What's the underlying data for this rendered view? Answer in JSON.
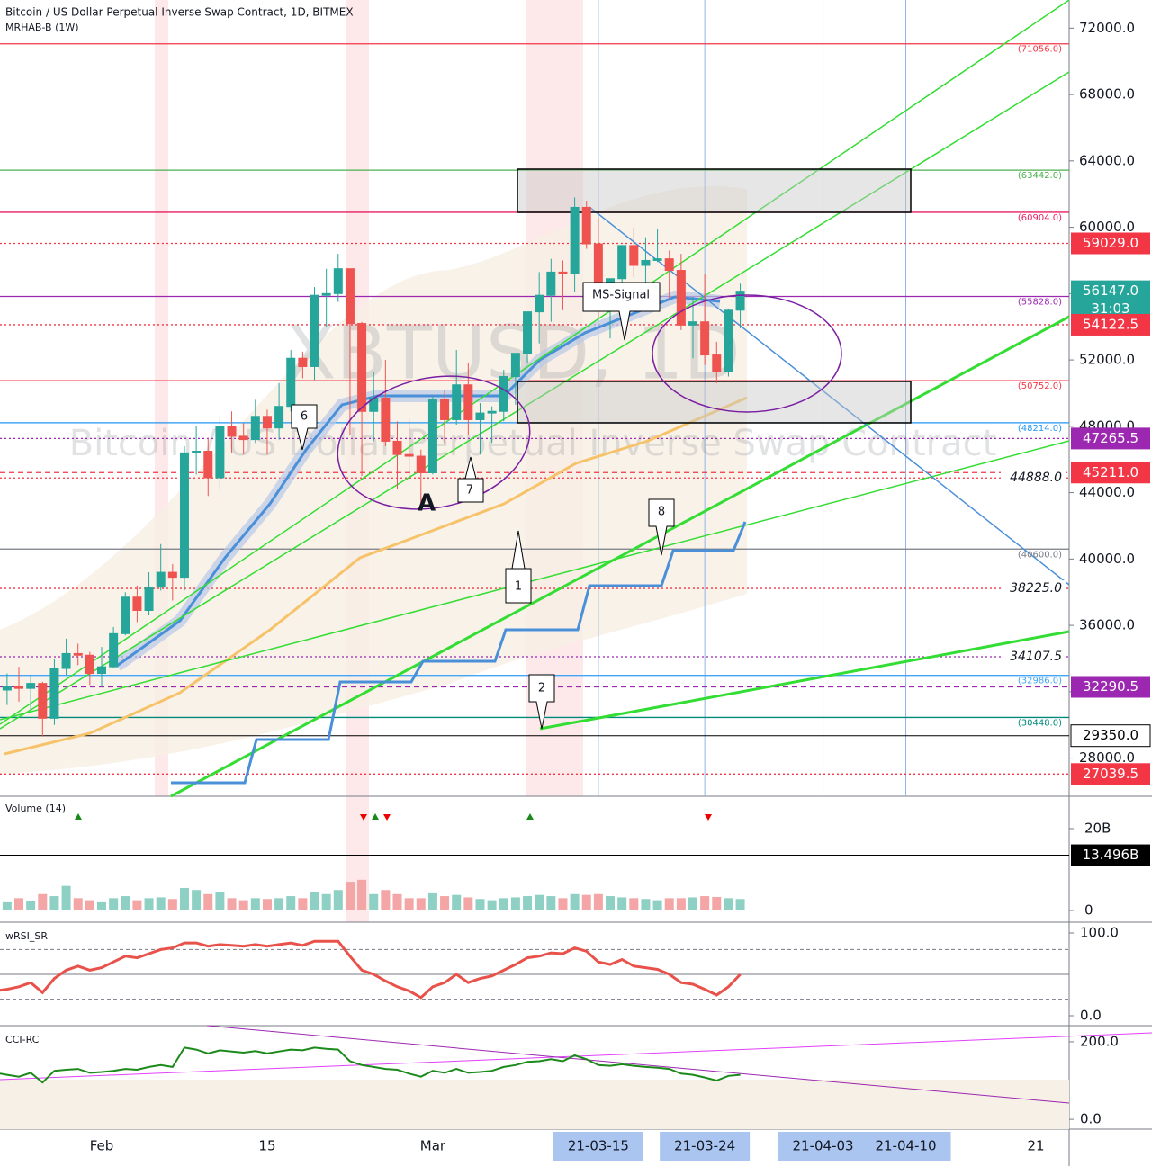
{
  "chart_data": {
    "type": "candlestick",
    "title": "Bitcoin / US Dollar Perpetual Inverse Swap Contract, 1D, BITMEX",
    "subtitle": "MRHAB-B (1W)",
    "watermark": "XBTUSD, 1D",
    "watermark_subtitle": "Bitcoin / US Dollar Perpetual Inverse Swap Contract",
    "up_color": "#26a69a",
    "down_color": "#ef5350",
    "x": [
      "21-01-23",
      "21-01-24",
      "21-01-25",
      "21-01-26",
      "21-01-27",
      "21-01-28",
      "21-01-29",
      "21-01-30",
      "21-01-31",
      "21-02-01",
      "21-02-02",
      "21-02-03",
      "21-02-04",
      "21-02-05",
      "21-02-06",
      "21-02-07",
      "21-02-08",
      "21-02-09",
      "21-02-10",
      "21-02-11",
      "21-02-12",
      "21-02-13",
      "21-02-14",
      "21-02-15",
      "21-02-16",
      "21-02-17",
      "21-02-18",
      "21-02-19",
      "21-02-20",
      "21-02-21",
      "21-02-22",
      "21-02-23",
      "21-02-24",
      "21-02-25",
      "21-02-26",
      "21-02-27",
      "21-02-28",
      "21-03-01",
      "21-03-02",
      "21-03-03",
      "21-03-04",
      "21-03-05",
      "21-03-06",
      "21-03-07",
      "21-03-08",
      "21-03-09",
      "21-03-10",
      "21-03-11",
      "21-03-12",
      "21-03-13",
      "21-03-14",
      "21-03-15",
      "21-03-16",
      "21-03-17",
      "21-03-18",
      "21-03-19",
      "21-03-20",
      "21-03-21",
      "21-03-22",
      "21-03-23",
      "21-03-24",
      "21-03-25",
      "21-03-26",
      "21-03-27"
    ],
    "candles": [
      [
        32900,
        33700,
        31200,
        32100
      ],
      [
        32100,
        33100,
        31200,
        32300
      ],
      [
        32300,
        33500,
        31400,
        32200
      ],
      [
        32200,
        33000,
        30900,
        32500
      ],
      [
        32500,
        32600,
        29300,
        30400
      ],
      [
        30400,
        34000,
        30000,
        33400
      ],
      [
        33400,
        35200,
        33000,
        34300
      ],
      [
        34300,
        34900,
        33600,
        34200
      ],
      [
        34200,
        34400,
        32400,
        33100
      ],
      [
        33100,
        34700,
        32300,
        33500
      ],
      [
        33500,
        35900,
        33400,
        35500
      ],
      [
        35500,
        38000,
        35400,
        37700
      ],
      [
        37700,
        38400,
        36200,
        36900
      ],
      [
        36900,
        39200,
        36600,
        38300
      ],
      [
        38300,
        40900,
        38100,
        39200
      ],
      [
        39200,
        39700,
        37500,
        38900
      ],
      [
        38900,
        46800,
        38100,
        46400
      ],
      [
        46400,
        48000,
        45100,
        46500
      ],
      [
        46500,
        47300,
        43800,
        44900
      ],
      [
        44900,
        48500,
        44200,
        48000
      ],
      [
        48000,
        48900,
        46400,
        47400
      ],
      [
        47400,
        48200,
        46300,
        47200
      ],
      [
        47200,
        49600,
        47000,
        48600
      ],
      [
        48600,
        49000,
        46300,
        47900
      ],
      [
        47900,
        50600,
        47200,
        49200
      ],
      [
        49200,
        52600,
        48900,
        52100
      ],
      [
        52100,
        52500,
        50900,
        51600
      ],
      [
        51600,
        56400,
        50800,
        55900
      ],
      [
        55900,
        57500,
        54000,
        56000
      ],
      [
        56000,
        58400,
        55500,
        57500
      ],
      [
        57500,
        57500,
        47500,
        54200
      ],
      [
        54200,
        54300,
        45000,
        48900
      ],
      [
        48900,
        51300,
        47100,
        49700
      ],
      [
        49700,
        52000,
        46800,
        47100
      ],
      [
        47100,
        48300,
        44200,
        46300
      ],
      [
        46300,
        48400,
        45000,
        46200
      ],
      [
        46200,
        46600,
        43000,
        45200
      ],
      [
        45200,
        49800,
        45100,
        49600
      ],
      [
        49600,
        50200,
        47000,
        48400
      ],
      [
        48400,
        52600,
        48100,
        50500
      ],
      [
        50500,
        51800,
        47500,
        48400
      ],
      [
        48400,
        49400,
        46300,
        48800
      ],
      [
        48800,
        49200,
        47000,
        48900
      ],
      [
        48900,
        51400,
        48300,
        51000
      ],
      [
        51000,
        52400,
        49300,
        52400
      ],
      [
        52400,
        54900,
        51800,
        54900
      ],
      [
        54900,
        57300,
        53000,
        55900
      ],
      [
        55900,
        58100,
        54300,
        57300
      ],
      [
        57300,
        58000,
        55000,
        57200
      ],
      [
        57200,
        61800,
        56100,
        61200
      ],
      [
        61200,
        61600,
        58700,
        59000
      ],
      [
        59000,
        60600,
        54600,
        55700
      ],
      [
        55700,
        56900,
        53300,
        56900
      ],
      [
        56900,
        58900,
        54300,
        58900
      ],
      [
        58900,
        60000,
        57000,
        57700
      ],
      [
        57700,
        59400,
        56300,
        58000
      ],
      [
        58000,
        59900,
        57900,
        58100
      ],
      [
        58100,
        58600,
        55700,
        57400
      ],
      [
        57400,
        58400,
        53800,
        54100
      ],
      [
        54100,
        55800,
        52100,
        54300
      ],
      [
        54300,
        57200,
        51700,
        52300
      ],
      [
        52300,
        53100,
        50600,
        51300
      ],
      [
        51300,
        55100,
        51000,
        55000
      ],
      [
        55000,
        56600,
        53900,
        56147
      ]
    ],
    "ylim": [
      25700,
      73700
    ],
    "yticks": [
      {
        "value": 72000,
        "label": "72000.0"
      },
      {
        "value": 68000,
        "label": "68000.0"
      },
      {
        "value": 64000,
        "label": "64000.0"
      },
      {
        "value": 60000,
        "label": "60000.0"
      },
      {
        "value": 56000,
        "label": "56000.0"
      },
      {
        "value": 52000,
        "label": "52000.0"
      },
      {
        "value": 48000,
        "label": "48000.0"
      },
      {
        "value": 44000,
        "label": "44000.0"
      },
      {
        "value": 40000,
        "label": "40000.0"
      },
      {
        "value": 36000,
        "label": "36000.0"
      },
      {
        "value": 32000,
        "label": "32000.0"
      },
      {
        "value": 28000,
        "label": "28000.0"
      }
    ],
    "xticks": [
      {
        "value": "21-02-01",
        "label": "Feb"
      },
      {
        "value": "21-02-15",
        "label": "15"
      },
      {
        "value": "21-03-01",
        "label": "Mar"
      },
      {
        "value": "21-04-21",
        "label": "21"
      }
    ],
    "highlighted_dates": [
      "21-03-15",
      "21-03-24",
      "21-04-03",
      "21-04-10"
    ],
    "countdown": "31:03",
    "levels": [
      {
        "value": 71056,
        "label": "(71056.0)",
        "color": "#f23645",
        "style": "solid",
        "kind": "paren"
      },
      {
        "value": 63442,
        "label": "(63442.0)",
        "color": "#4caf50",
        "style": "solid",
        "kind": "paren"
      },
      {
        "value": 60904,
        "label": "(60904.0)",
        "color": "#e91e63",
        "style": "solid",
        "kind": "paren"
      },
      {
        "value": 59029,
        "label": "59029.0",
        "color": "#f23645",
        "style": "dotted",
        "kind": "badge"
      },
      {
        "value": 56147,
        "label": "56147.0",
        "color": "#26a69a",
        "style": "none",
        "kind": "price"
      },
      {
        "value": 55828,
        "label": "(55828.0)",
        "color": "#9c27b0",
        "style": "solid",
        "kind": "paren"
      },
      {
        "value": 54122.5,
        "label": "54122.5",
        "color": "#f23645",
        "style": "dotted",
        "kind": "badge"
      },
      {
        "value": 50752,
        "label": "(50752.0)",
        "color": "#f23645",
        "style": "solid",
        "kind": "paren"
      },
      {
        "value": 48214,
        "label": "(48214.0)",
        "color": "#2196f3",
        "style": "solid",
        "kind": "paren"
      },
      {
        "value": 47265.5,
        "label": "47265.5",
        "color": "#9c27b0",
        "style": "dotted",
        "kind": "badge"
      },
      {
        "value": 45211,
        "label": "45211.0",
        "color": "#f23645",
        "style": "dashed",
        "kind": "badge"
      },
      {
        "value": 44888,
        "label": "44888.0",
        "color": "#f23645",
        "style": "dotted",
        "kind": "italic"
      },
      {
        "value": 40600,
        "label": "(40600.0)",
        "color": "#787b86",
        "style": "solid",
        "kind": "paren"
      },
      {
        "value": 38225,
        "label": "38225.0",
        "color": "#f23645",
        "style": "dotted",
        "kind": "italic"
      },
      {
        "value": 34107.5,
        "label": "34107.5",
        "color": "#9c27b0",
        "style": "dotted",
        "kind": "italic"
      },
      {
        "value": 32986,
        "label": "(32986.0)",
        "color": "#42a5f5",
        "style": "solid",
        "kind": "paren"
      },
      {
        "value": 32290.5,
        "label": "32290.5",
        "color": "#9c27b0",
        "style": "dashed",
        "kind": "badge"
      },
      {
        "value": 30448,
        "label": "(30448.0)",
        "color": "#00897b",
        "style": "solid",
        "kind": "paren"
      },
      {
        "value": 29350,
        "label": "29350.0",
        "color": "#000000",
        "style": "solid",
        "kind": "outline"
      },
      {
        "value": 27039.5,
        "label": "27039.5",
        "color": "#f23645",
        "style": "dotted",
        "kind": "badge"
      }
    ],
    "annotations": [
      "6",
      "7",
      "A",
      "1",
      "8",
      "2",
      "MS-Signal"
    ],
    "volume": {
      "title": "Volume (14)",
      "values": [
        2.5,
        2,
        3,
        2.2,
        4,
        3.5,
        6,
        3,
        2.5,
        2,
        3,
        3.5,
        2.5,
        3,
        3.2,
        2.8,
        5.5,
        5,
        4,
        4.5,
        3,
        2.5,
        3,
        2.8,
        3,
        3.5,
        3,
        4.5,
        4,
        5,
        7,
        7.5,
        4,
        5,
        4,
        3,
        3,
        4.2,
        3.5,
        3.8,
        3.2,
        2.8,
        2.5,
        3,
        3.2,
        3.5,
        3.8,
        3.5,
        3,
        4,
        3.8,
        4,
        3.5,
        3.2,
        3,
        2.8,
        2.5,
        3,
        3,
        3.2,
        3.5,
        3.3,
        3,
        2.8
      ],
      "ylim": [
        -2.2,
        26.8
      ],
      "yticks": [
        {
          "value": 20,
          "label": "20B"
        },
        0
      ],
      "badge": {
        "value": 13.496,
        "label": "13.496B"
      }
    },
    "rsi": {
      "title": "wRSI_SR",
      "values": [
        30,
        32,
        35,
        40,
        28,
        45,
        55,
        60,
        55,
        58,
        65,
        72,
        70,
        75,
        80,
        82,
        88,
        88,
        84,
        86,
        85,
        84,
        86,
        84,
        86,
        88,
        85,
        90,
        90,
        90,
        72,
        55,
        50,
        42,
        35,
        30,
        22,
        35,
        40,
        50,
        40,
        45,
        48,
        55,
        62,
        70,
        72,
        76,
        75,
        82,
        78,
        65,
        62,
        68,
        60,
        58,
        56,
        50,
        40,
        38,
        32,
        25,
        35,
        50
      ],
      "ylim": [
        -9.8,
        110.9
      ],
      "yticks": [
        {
          "value": 100,
          "label": "100.0"
        },
        {
          "value": 0,
          "label": "0.0"
        }
      ],
      "levels": [
        80,
        50,
        20
      ]
    },
    "cci": {
      "title": "CCI-RC",
      "values": [
        120,
        115,
        110,
        120,
        95,
        125,
        128,
        130,
        120,
        122,
        125,
        130,
        128,
        135,
        140,
        135,
        185,
        180,
        170,
        178,
        175,
        172,
        176,
        170,
        175,
        180,
        178,
        185,
        182,
        180,
        150,
        140,
        135,
        130,
        128,
        118,
        110,
        125,
        120,
        130,
        120,
        122,
        125,
        135,
        140,
        148,
        150,
        155,
        150,
        165,
        155,
        140,
        138,
        142,
        138,
        135,
        133,
        130,
        118,
        115,
        108,
        100,
        112,
        115
      ],
      "ylim": [
        -23,
        237
      ],
      "yticks": [
        {
          "value": 200,
          "label": "200.0"
        },
        {
          "value": 0,
          "label": "0.0"
        }
      ]
    }
  }
}
